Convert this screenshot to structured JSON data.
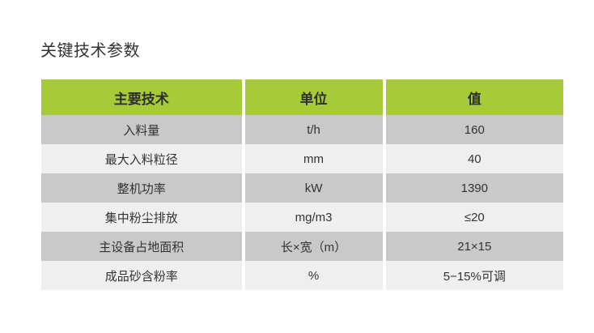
{
  "title": "关键技术参数",
  "table": {
    "headers": [
      "主要技术",
      "单位",
      "值"
    ],
    "rows": [
      [
        "入料量",
        "t/h",
        "160"
      ],
      [
        "最大入料粒径",
        "mm",
        "40"
      ],
      [
        "整机功率",
        "kW",
        "1390"
      ],
      [
        "集中粉尘排放",
        "mg/m3",
        "≤20"
      ],
      [
        "主设备占地面积",
        "长×宽（m）",
        "21×15"
      ],
      [
        "成品砂含粉率",
        "%",
        "5−15%可调"
      ]
    ]
  },
  "colors": {
    "header": "#a7cb38",
    "row_dark": "#c9c9c9",
    "row_light": "#efefef"
  }
}
